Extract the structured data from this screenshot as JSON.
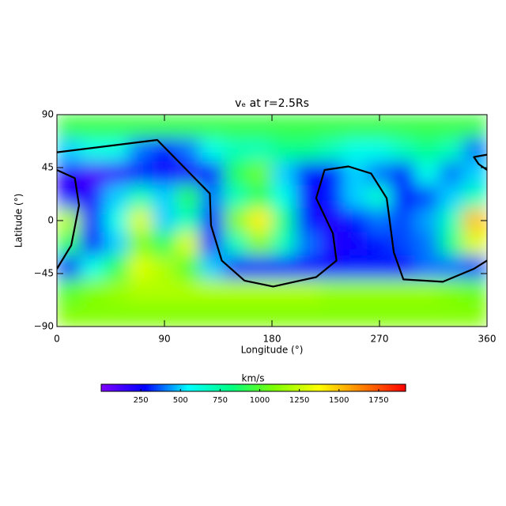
{
  "chart_data": {
    "type": "heatmap",
    "title": "vₑ at r=2.5Rs",
    "xlabel": "Longitude (°)",
    "ylabel": "Latitude (°)",
    "colorbar_label": "km/s",
    "x": [
      10,
      30,
      50,
      70,
      90,
      110,
      130,
      150,
      170,
      190,
      210,
      230,
      250,
      270,
      290,
      310,
      330,
      350
    ],
    "y": [
      80,
      60,
      40,
      20,
      0,
      -20,
      -40,
      -60,
      -80
    ],
    "values": [
      [
        950,
        950,
        950,
        950,
        950,
        950,
        950,
        950,
        950,
        950,
        950,
        950,
        950,
        950,
        950,
        950,
        950,
        950
      ],
      [
        500,
        600,
        600,
        400,
        300,
        400,
        600,
        700,
        700,
        800,
        800,
        700,
        600,
        600,
        700,
        800,
        700,
        400
      ],
      [
        200,
        100,
        150,
        300,
        250,
        200,
        300,
        900,
        1050,
        500,
        300,
        300,
        500,
        400,
        300,
        600,
        400,
        500
      ],
      [
        200,
        200,
        500,
        700,
        500,
        900,
        400,
        700,
        900,
        600,
        250,
        300,
        500,
        650,
        300,
        350,
        500,
        700
      ],
      [
        1200,
        300,
        600,
        1300,
        500,
        700,
        300,
        1100,
        1400,
        800,
        300,
        200,
        300,
        400,
        350,
        450,
        700,
        1500
      ],
      [
        900,
        250,
        500,
        1100,
        900,
        1300,
        250,
        700,
        1100,
        700,
        400,
        200,
        250,
        300,
        350,
        400,
        800,
        1300
      ],
      [
        300,
        600,
        900,
        1300,
        1200,
        1000,
        500,
        300,
        300,
        300,
        250,
        250,
        300,
        300,
        250,
        400,
        400,
        350
      ],
      [
        1000,
        1100,
        1150,
        1200,
        1200,
        1200,
        1200,
        1200,
        1200,
        1200,
        1200,
        1150,
        1150,
        1150,
        1150,
        1150,
        1100,
        1050
      ],
      [
        1100,
        1100,
        1100,
        1100,
        1100,
        1100,
        1100,
        1100,
        1100,
        1100,
        1100,
        1100,
        1100,
        1100,
        1100,
        1100,
        1100,
        1100
      ]
    ],
    "colormap": [
      "#7f00ff",
      "#0000ff",
      "#00ffff",
      "#00ff80",
      "#80ff00",
      "#ffff00",
      "#ff8000",
      "#ff0000"
    ],
    "clim": [
      0,
      1920
    ],
    "cticks": [
      250,
      500,
      750,
      1000,
      1250,
      1500,
      1750
    ],
    "xlim": [
      0,
      360
    ],
    "ylim": [
      -90,
      90
    ],
    "xticks": [
      0,
      90,
      180,
      270,
      360
    ],
    "yticks": [
      {
        "value": -90,
        "label": "−90"
      },
      {
        "value": -45,
        "label": "−45"
      },
      0,
      45,
      90
    ],
    "neutral_line": {
      "color": "#000000",
      "x": [
        0,
        84,
        128,
        129,
        138,
        157,
        181,
        217,
        234,
        231,
        217,
        224,
        244,
        263,
        276,
        282,
        290,
        323,
        349,
        360,
        null,
        360,
        349,
        353,
        360,
        null,
        0,
        15,
        18.5,
        12,
        0
      ],
      "y": [
        58,
        68.5,
        23,
        -4,
        -34,
        -51,
        -56,
        -48,
        -34,
        -11,
        19,
        43,
        46,
        40,
        19,
        -27,
        -50,
        -52,
        -41,
        -34,
        null,
        56,
        54,
        48,
        43,
        null,
        43,
        36,
        13,
        -21,
        -41
      ]
    }
  }
}
